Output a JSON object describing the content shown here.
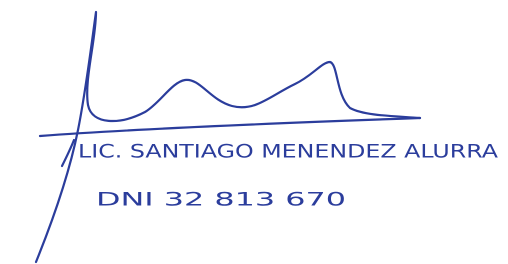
{
  "signature": {
    "name_line": "LIC. SANTIAGO MENENDEZ ALURRA",
    "id_line": "DNI 32 813 670"
  }
}
